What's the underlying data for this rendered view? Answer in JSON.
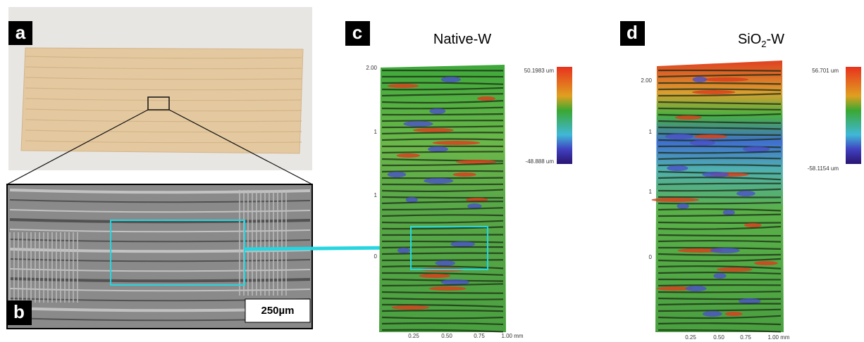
{
  "panels": [
    {
      "label": "a"
    },
    {
      "label": "b",
      "scale_bar": "250µm"
    },
    {
      "label": "c",
      "title": {
        "main": "Native-W"
      },
      "colorbar": {
        "max": "50.1983 um",
        "min": "-48.888 um"
      },
      "y_labels": [
        "2.00",
        "1",
        "1",
        "0"
      ],
      "x_labels": [
        "0.25",
        "0.50",
        "0.75",
        "1.00 mm"
      ]
    },
    {
      "label": "d",
      "title": {
        "main": "SiO",
        "sub": "2",
        "end": "-W"
      },
      "colorbar": {
        "max": "56.701 um",
        "min": "-58.1154 um"
      },
      "y_labels": [
        "2.00",
        "1",
        "1",
        "0"
      ],
      "x_labels": [
        "0.25",
        "0.50",
        "0.75",
        "1.00 mm"
      ]
    }
  ]
}
